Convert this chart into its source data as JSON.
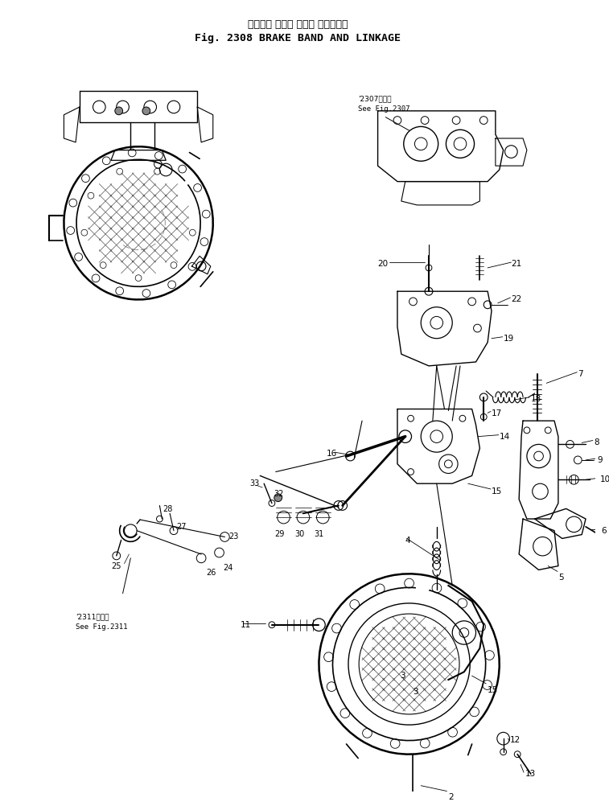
{
  "title_jp": "ブレーキ バンド および リンケージ",
  "title_en": "Fig. 2308 BRAKE BAND AND LINKAGE",
  "bg_color": "#ffffff",
  "fig_width": 7.57,
  "fig_height": 10.02,
  "dpi": 100,
  "see_fig2307_jp": "'2307図参照",
  "see_fig2307_en": "See Fig.2307",
  "see_fig2311_jp": "'2311図参照",
  "see_fig2311_en": "See Fig.2311"
}
